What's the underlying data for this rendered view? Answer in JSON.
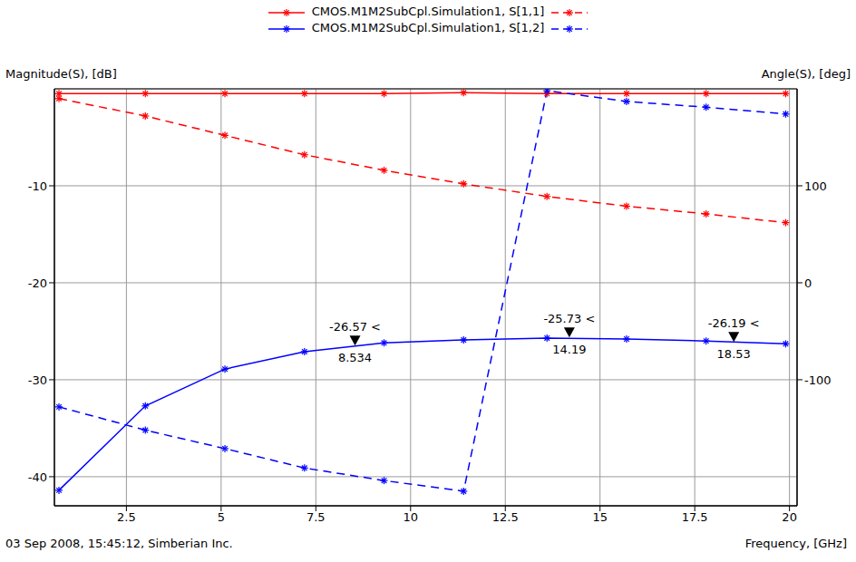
{
  "chart_data": {
    "type": "line",
    "y_label": "Magnitude(S), [dB]",
    "y2_label": "Angle(S), [deg]",
    "x_label": "Frequency, [GHz]",
    "caption": "03 Sep 2008, 15:45:12, Simberian Inc.",
    "x": [
      0.72,
      3.0,
      5.1,
      7.2,
      9.3,
      11.4,
      13.6,
      15.7,
      17.8,
      19.9
    ],
    "xlim": [
      0.6,
      20.2
    ],
    "xticks": [
      2.5,
      5,
      7.5,
      10,
      12.5,
      15,
      17.5,
      20
    ],
    "ylim": [
      -43,
      0
    ],
    "yticks": [
      -10,
      -20,
      -30,
      -40
    ],
    "y2lim": [
      -230,
      200
    ],
    "y2ticks": [
      100,
      0,
      -100
    ],
    "grid": true,
    "legend": "top",
    "series": [
      {
        "name": "CMOS.M1M2SubCpl.Simulation1, S[1,1]",
        "color": "#ff0000",
        "line_style": "solid",
        "marker": "asterisk",
        "values": [
          -0.5,
          -0.5,
          -0.5,
          -0.5,
          -0.5,
          -0.4,
          -0.5,
          -0.5,
          -0.5,
          -0.5
        ]
      },
      {
        "name": "CMOS.M1M2SubCpl.Simulation1, S[1,1]",
        "color": "#ff0000",
        "line_style": "dashed",
        "marker": "asterisk",
        "axis": "y2",
        "values": [
          190,
          172,
          152,
          132,
          116,
          102,
          89,
          79,
          71,
          62
        ]
      },
      {
        "name": "CMOS.M1M2SubCpl.Simulation1, S[1,2]",
        "color": "#0000ff",
        "line_style": "solid",
        "marker": "asterisk",
        "values": [
          -41.4,
          -32.7,
          -28.9,
          -27.1,
          -26.2,
          -25.9,
          -25.7,
          -25.8,
          -26.0,
          -26.3
        ]
      },
      {
        "name": "CMOS.M1M2SubCpl.Simulation1, S[1,2]",
        "color": "#0000ff",
        "line_style": "dashed",
        "marker": "asterisk",
        "axis": "y2",
        "values": [
          -128,
          -152,
          -171,
          -191,
          -204,
          -215,
          198,
          187,
          181,
          174
        ]
      }
    ],
    "annotations": [
      {
        "x": 8.534,
        "y": -26.57,
        "label": "-26.57 <",
        "x_text": "8.534"
      },
      {
        "x": 14.19,
        "y": -25.73,
        "label": "-25.73 <",
        "x_text": "14.19"
      },
      {
        "x": 18.53,
        "y": -26.19,
        "label": "-26.19 <",
        "x_text": "18.53"
      }
    ]
  }
}
